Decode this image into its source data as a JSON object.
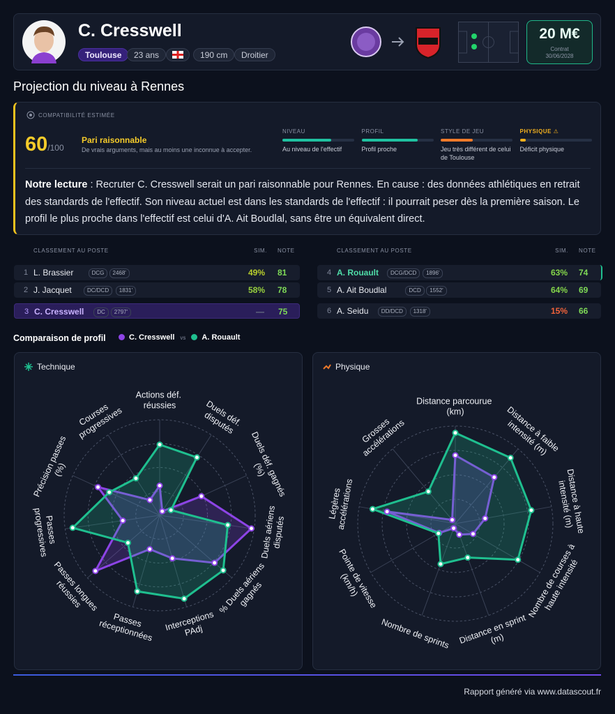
{
  "header": {
    "name": "C. Cresswell",
    "club": "Toulouse",
    "age": "23 ans",
    "height": "190 cm",
    "foot": "Droitier",
    "value": "20 M€",
    "contract_label": "Contrat",
    "contract_date": "30/06/2028"
  },
  "section_title": "Projection du niveau à Rennes",
  "compatibility": {
    "label": "COMPATIBILITÉ ESTIMÉE",
    "score": "60",
    "score_suffix": "/100",
    "verdict": "Pari raisonnable",
    "verdict_description": "De vrais arguments, mais au moins une inconnue à accepter.",
    "criteria": [
      {
        "title": "NIVEAU",
        "fill": 68,
        "color": "#1fc1a0",
        "description": "Au niveau de l'effectif"
      },
      {
        "title": "PROFIL",
        "fill": 78,
        "color": "#1fc1a0",
        "description": "Profil proche"
      },
      {
        "title": "STYLE DE JEU",
        "fill": 45,
        "color": "#f07a2a",
        "description": "Jeu très différent de celui de Toulouse"
      },
      {
        "title": "PHYSIQUE ⚠",
        "fill": 8,
        "color": "#f2b01e",
        "title_color": "#f2b01e",
        "description": "Déficit physique"
      }
    ],
    "reading_lead": "Notre lecture",
    "reading_text": ": Recruter C. Cresswell serait un pari raisonnable pour Rennes. En cause : des données athlétiques en retrait des standards de l'effectif. Son niveau actuel est dans les standards de l'effectif : il pourrait peser dès la première saison. Le profil le plus proche dans l'effectif est celui d'A. Ait Boudlal, sans être un équivalent direct."
  },
  "tables": [
    {
      "headers": [
        "CLASSEMENT AU POSTE",
        "SIM.",
        "NOTE"
      ],
      "rows": [
        {
          "rank": "1",
          "name": "L. Brassier",
          "position": "DCG",
          "minutes": "2468'",
          "sim": "49%",
          "sim_color": "#b9cf2c",
          "note": "81"
        },
        {
          "rank": "2",
          "name": "J. Jacquet",
          "position": "DC/DCD",
          "minutes": "1831'",
          "sim": "58%",
          "sim_color": "#98d13e",
          "note": "78"
        },
        {
          "rank": "3",
          "name": "C. Cresswell",
          "position": "DC",
          "minutes": "2797'",
          "sim": "—",
          "sim_color": "#6b7285",
          "note": "75",
          "highlight": "player"
        }
      ]
    },
    {
      "headers": [
        "CLASSEMENT AU POSTE",
        "SIM.",
        "NOTE"
      ],
      "rows": [
        {
          "rank": "4",
          "name": "A. Rouault",
          "position": "DCG/DCD",
          "minutes": "1896'",
          "sim": "63%",
          "sim_color": "#84d54a",
          "note": "74",
          "highlight": "match"
        },
        {
          "rank": "5",
          "name": "A. Ait Boudlal",
          "position": "DCD",
          "minutes": "1552'",
          "sim": "64%",
          "sim_color": "#84d54a",
          "note": "69"
        },
        {
          "rank": "6",
          "name": "A. Seidu",
          "position": "DD/DCD",
          "minutes": "1318'",
          "sim": "15%",
          "sim_color": "#f0623a",
          "note": "66"
        }
      ]
    }
  ],
  "comparison": {
    "title": "Comparaison de profil",
    "vs": "vs"
  },
  "radars": [
    {
      "type": "radar",
      "title": "Technique",
      "rlim": [
        0,
        100
      ],
      "rticks": [
        25,
        50,
        75,
        100
      ],
      "axes": [
        "Actions déf. réussies",
        "Duels déf. disputés",
        "Duels déf. gagnés (%)",
        "Duels aériens disputés",
        "% Duels aériens gagnés",
        "Interceptions PAdj",
        "Passes réceptionnées",
        "Passes longues réussies",
        "Passes progressives",
        "Précision passes (%)",
        "Courses progressives"
      ],
      "series": [
        {
          "name": "C. Cresswell",
          "color": "#8d44e6",
          "values": [
            31,
            5,
            48,
            97,
            76,
            47,
            37,
            89,
            39,
            71,
            19
          ]
        },
        {
          "name": "A. Rouault",
          "color": "#1fbf8f",
          "values": [
            74,
            72,
            13,
            72,
            88,
            91,
            83,
            44,
            92,
            58,
            46
          ]
        }
      ]
    },
    {
      "type": "radar",
      "title": "Physique",
      "rlim": [
        0,
        100
      ],
      "rticks": [
        25,
        50,
        75,
        100
      ],
      "axes": [
        "Distance parcourue (km)",
        "Distance à faible intensité (m)",
        "Distance à haute intensité (m)",
        "Nombre de courses à haute intensité",
        "Distance en sprint (m)",
        "Nombre de sprints",
        "Pointe de vitesse (km/h)",
        "Légères accélérations",
        "Grosses accélérations"
      ],
      "series": [
        {
          "color": "#8d44e6",
          "values": [
            70,
            62,
            31,
            21,
            12,
            5,
            19,
            71,
            5
          ]
        },
        {
          "color": "#1fbf8f",
          "values": [
            93,
            88,
            79,
            74,
            37,
            44,
            20,
            86,
            43
          ]
        }
      ]
    }
  ],
  "footer": "Rapport généré via www.datascout.fr"
}
